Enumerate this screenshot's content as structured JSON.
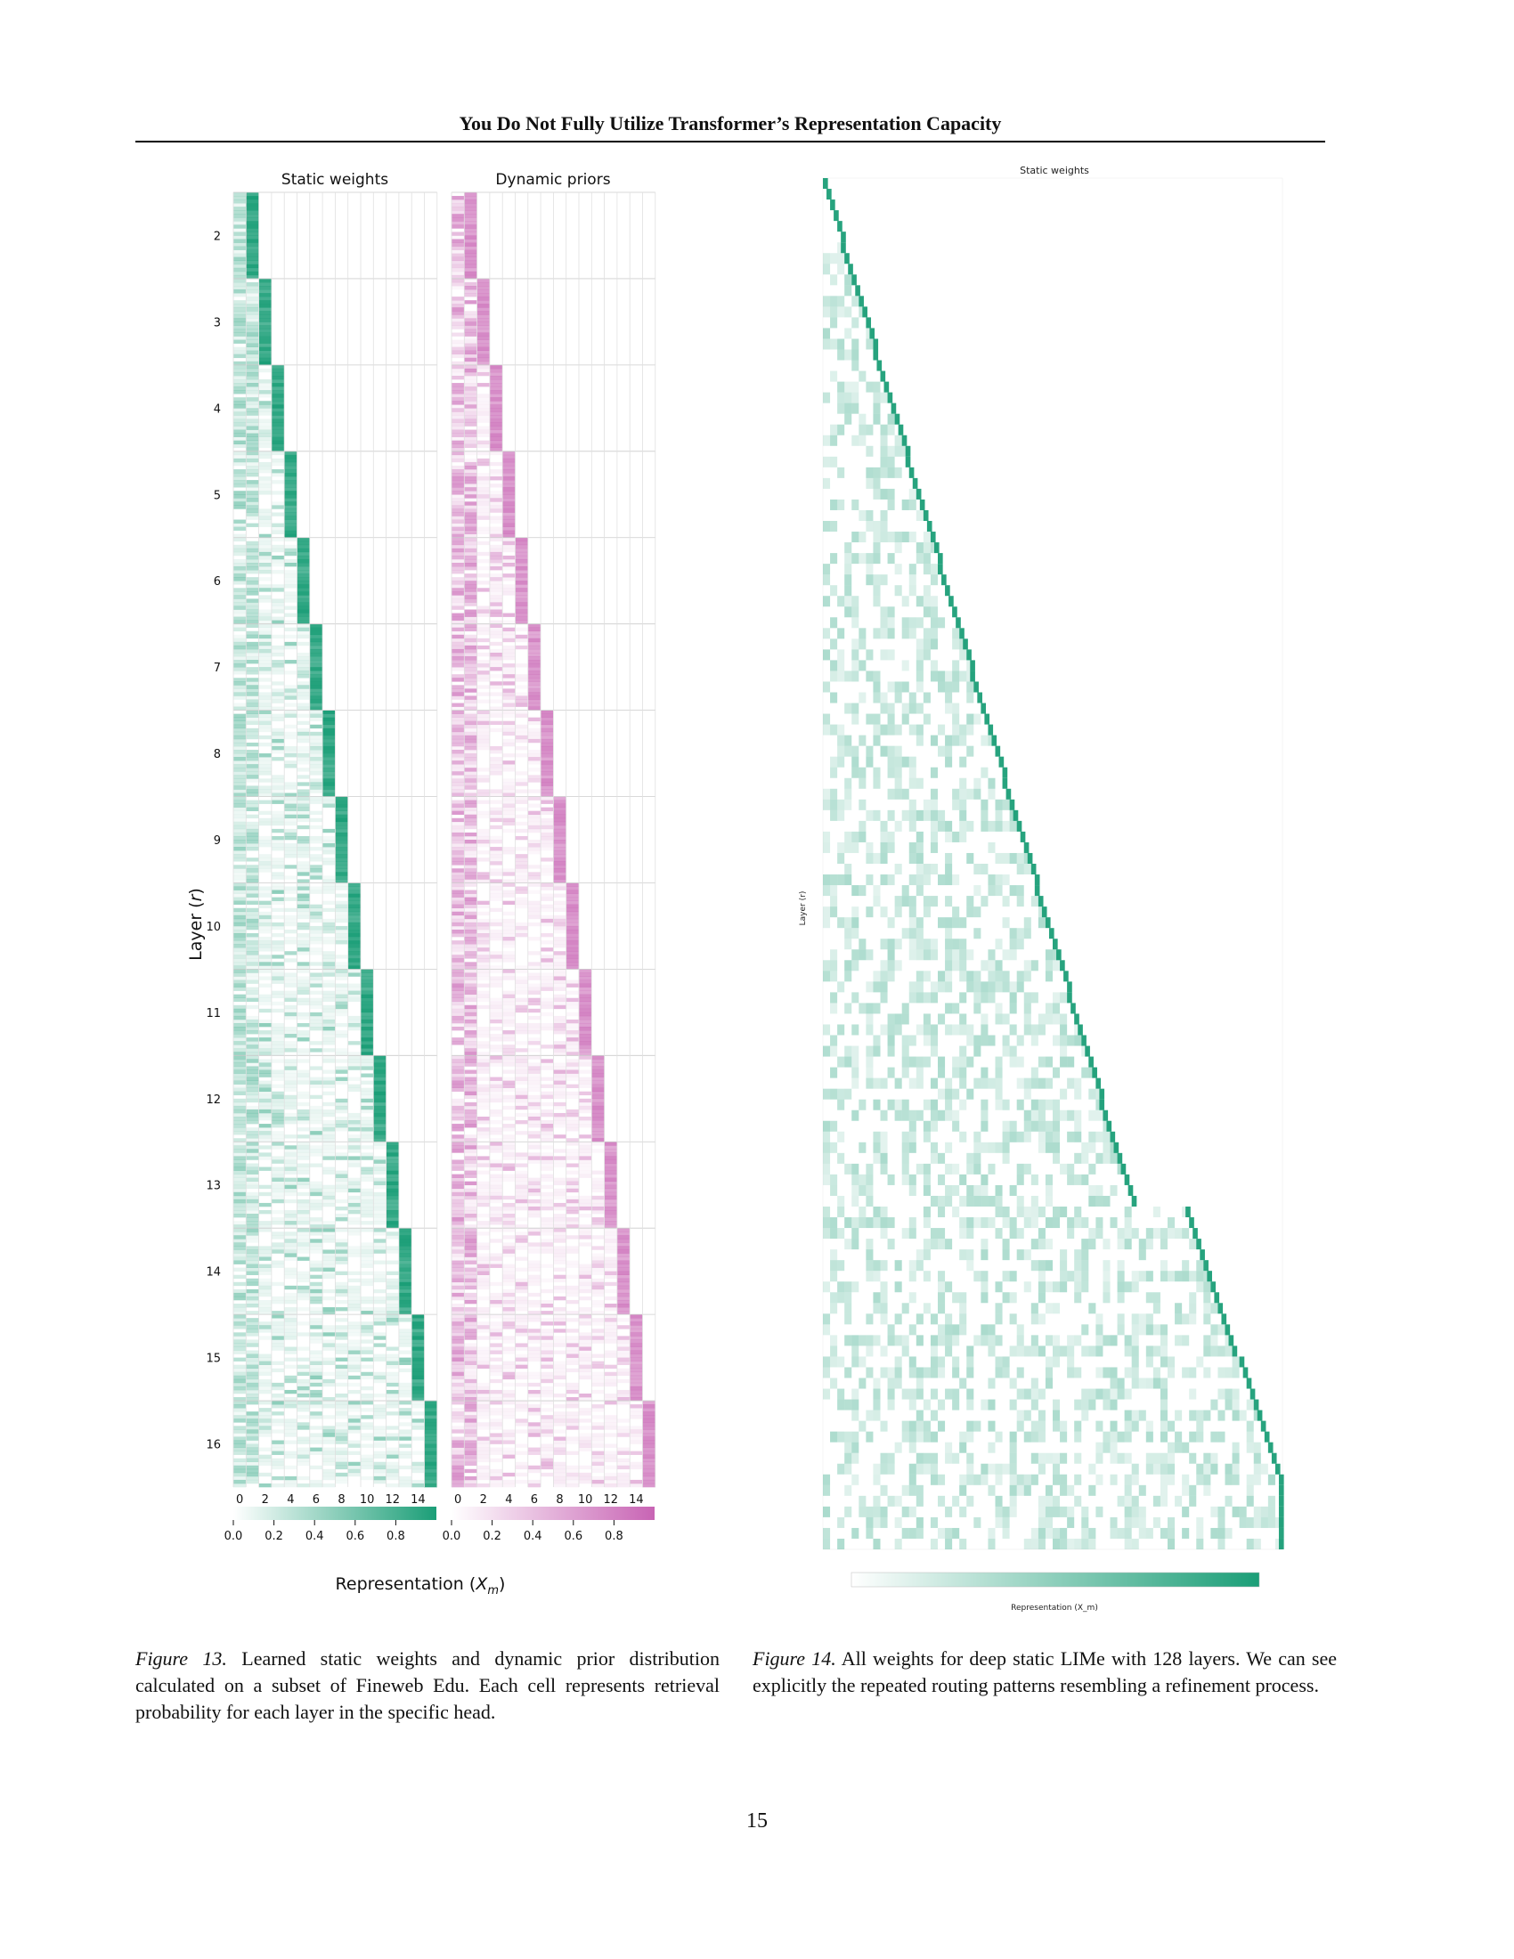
{
  "header": {
    "running_title": "You Do Not Fully Utilize Transformer’s Representation Capacity"
  },
  "figure13": {
    "panels": [
      {
        "title": "Static weights",
        "color": "#1b9e77"
      },
      {
        "title": "Dynamic priors",
        "color": "#c864b4"
      }
    ],
    "ylabel": "Layer (r)",
    "xlabel": "Representation (X_m)",
    "layers": [
      2,
      3,
      4,
      5,
      6,
      7,
      8,
      9,
      10,
      11,
      12,
      13,
      14,
      15,
      16
    ],
    "x_ticks": [
      0,
      2,
      4,
      6,
      8,
      10,
      12,
      14
    ],
    "colorbar_ticks": [
      "0.0",
      "0.2",
      "0.4",
      "0.6",
      "0.8"
    ],
    "caption_label": "Figure 13.",
    "caption_text": "Learned static weights and dynamic prior distribution calculated on a subset of Fineweb Edu. Each cell represents retrieval probability for each layer in the specific head."
  },
  "figure14": {
    "title": "Static weights",
    "ylabel": "Layer (r)",
    "xlabel": "Representation (X_m)",
    "num_layers": 128,
    "color": "#1b9e77",
    "caption_label": "Figure 14.",
    "caption_text": "All weights for deep static LIMe with 128 layers. We can see explicitly the repeated routing patterns resembling a refinement process."
  },
  "page_number": "15"
}
